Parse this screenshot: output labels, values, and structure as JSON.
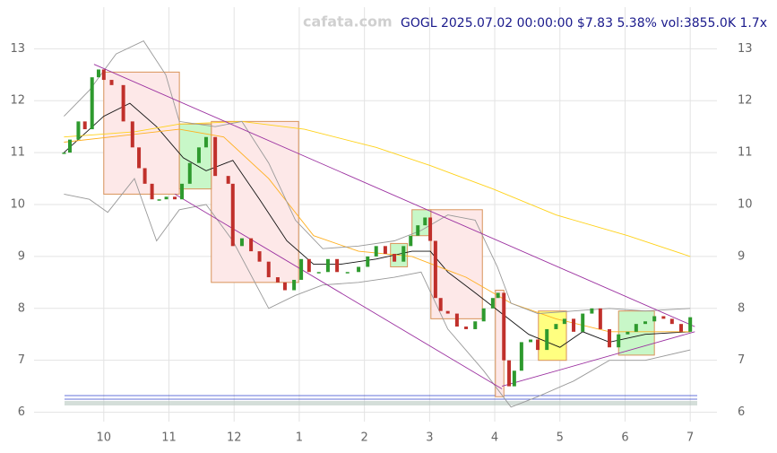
{
  "chart_data": {
    "type": "candlestick",
    "title": "GOGL 2025.07.02 00:00:00 $7.83 5.38% vol:3855.0K 1.7x",
    "watermark": "cafata.com",
    "xlim": [
      -1.07,
      9.41
    ],
    "ylim": [
      5.82,
      13.8
    ],
    "xticks": [
      {
        "value": 0,
        "label": "10"
      },
      {
        "value": 1,
        "label": "11"
      },
      {
        "value": 2,
        "label": "12"
      },
      {
        "value": 3,
        "label": "1"
      },
      {
        "value": 4,
        "label": "2"
      },
      {
        "value": 5,
        "label": "3"
      },
      {
        "value": 6,
        "label": "4"
      },
      {
        "value": 7,
        "label": "5"
      },
      {
        "value": 8,
        "label": "6"
      },
      {
        "value": 9,
        "label": "7"
      }
    ],
    "yticks": [
      6,
      7,
      8,
      9,
      10,
      11,
      12,
      13
    ],
    "grid": true,
    "up_color": "#2e9a2e",
    "down_color": "#c0302b",
    "x": [
      -0.61,
      -0.52,
      -0.39,
      -0.29,
      -0.18,
      -0.08,
      0,
      0.12,
      0.3,
      0.44,
      0.54,
      0.63,
      0.74,
      0.85,
      0.96,
      1.09,
      1.2,
      1.32,
      1.46,
      1.57,
      1.71,
      1.91,
      1.98,
      2.12,
      2.26,
      2.39,
      2.53,
      2.67,
      2.78,
      2.92,
      3.03,
      3.15,
      3.3,
      3.44,
      3.58,
      3.74,
      3.91,
      4.05,
      4.18,
      4.32,
      4.46,
      4.6,
      4.71,
      4.82,
      4.93,
      5.01,
      5.09,
      5.17,
      5.28,
      5.42,
      5.56,
      5.7,
      5.83,
      5.97,
      6.05,
      6.14,
      6.22,
      6.3,
      6.41,
      6.55,
      6.66,
      6.8,
      6.94,
      7.07,
      7.21,
      7.35,
      7.49,
      7.62,
      7.76,
      7.9,
      8.04,
      8.17,
      8.31,
      8.45,
      8.59,
      8.72,
      8.86,
      9.0
    ],
    "values": [
      11.0,
      11.25,
      11.6,
      11.45,
      12.45,
      12.6,
      12.4,
      12.3,
      11.6,
      11.1,
      10.7,
      10.4,
      10.1,
      10.1,
      10.15,
      10.1,
      10.4,
      10.8,
      11.1,
      11.3,
      10.55,
      10.4,
      9.2,
      9.35,
      9.1,
      8.9,
      8.6,
      8.5,
      8.35,
      8.55,
      8.95,
      8.7,
      8.7,
      8.95,
      8.7,
      8.7,
      8.8,
      9.0,
      9.2,
      9.05,
      8.9,
      9.2,
      9.4,
      9.6,
      9.75,
      9.3,
      8.2,
      7.95,
      7.9,
      7.65,
      7.6,
      7.75,
      8.0,
      8.2,
      8.3,
      7.0,
      6.5,
      6.8,
      7.35,
      7.4,
      7.2,
      7.6,
      7.7,
      7.8,
      7.55,
      7.9,
      8.0,
      7.6,
      7.25,
      7.5,
      7.55,
      7.7,
      7.75,
      7.85,
      7.8,
      7.7,
      7.55,
      7.83
    ],
    "series": [
      {
        "color": "#111111",
        "x": [
          -0.61,
          0,
          0.4,
          0.81,
          1.22,
          1.57,
          1.98,
          2.39,
          2.81,
          3.22,
          3.63,
          4.18,
          4.73,
          5.01,
          5.28,
          5.7,
          6.11,
          6.52,
          7.0,
          7.35,
          7.76,
          8.31,
          9.0
        ],
        "values": [
          11.0,
          11.7,
          11.95,
          11.5,
          10.9,
          10.65,
          10.85,
          10.1,
          9.3,
          8.85,
          8.85,
          8.95,
          9.1,
          9.1,
          8.7,
          8.3,
          7.9,
          7.5,
          7.25,
          7.55,
          7.35,
          7.5,
          7.55
        ]
      },
      {
        "color": "#ffb020",
        "x": [
          -0.61,
          1.16,
          1.84,
          2.53,
          3.22,
          3.91,
          4.73,
          5.56,
          6.25,
          6.94,
          7.76,
          9.0
        ],
        "values": [
          11.2,
          11.45,
          11.3,
          10.5,
          9.4,
          9.1,
          9.0,
          8.6,
          8.1,
          7.8,
          7.55,
          7.55
        ]
      },
      {
        "color": "#ffd21a",
        "x": [
          -0.61,
          0.47,
          1.16,
          2.12,
          3.08,
          4.18,
          5.01,
          5.97,
          6.94,
          8.04,
          9.0
        ],
        "values": [
          11.3,
          11.4,
          11.55,
          11.6,
          11.45,
          11.1,
          10.75,
          10.3,
          9.8,
          9.4,
          9.0
        ]
      },
      {
        "color": "#999999",
        "x": [
          -0.61,
          -0.22,
          0.19,
          0.61,
          0.95,
          1.16,
          1.71,
          2.12,
          2.53,
          2.94,
          3.36,
          3.91,
          4.46,
          4.87,
          5.28,
          5.7,
          6.04,
          6.25,
          6.66,
          7.21,
          7.76,
          8.31,
          9.0
        ],
        "values": [
          11.7,
          12.2,
          12.9,
          13.15,
          12.5,
          11.6,
          11.5,
          11.6,
          10.8,
          9.7,
          9.15,
          9.2,
          9.3,
          9.5,
          9.8,
          9.7,
          8.8,
          8.1,
          7.9,
          7.95,
          8.0,
          7.95,
          8.0
        ]
      },
      {
        "color": "#999999",
        "x": [
          -0.61,
          -0.22,
          0.06,
          0.47,
          0.81,
          1.16,
          1.57,
          1.98,
          2.53,
          2.94,
          3.36,
          3.91,
          4.46,
          4.87,
          5.28,
          5.83,
          6.25,
          6.66,
          7.21,
          7.76,
          8.31,
          9.0
        ],
        "values": [
          10.2,
          10.1,
          9.85,
          10.5,
          9.3,
          9.9,
          10.0,
          9.3,
          8.0,
          8.25,
          8.45,
          8.5,
          8.6,
          8.7,
          7.6,
          6.8,
          6.1,
          6.3,
          6.6,
          7.0,
          7.0,
          7.2
        ]
      }
    ],
    "zones": [
      {
        "x": [
          0,
          1.16
        ],
        "range": [
          10.2,
          12.55
        ],
        "color": "#fde8e8"
      },
      {
        "x": [
          1.65,
          2.99
        ],
        "range": [
          8.5,
          11.6
        ],
        "color": "#fde8e8"
      },
      {
        "x": [
          5.02,
          5.81
        ],
        "range": [
          7.8,
          9.9
        ],
        "color": "#fde8e8"
      },
      {
        "x": [
          6.01,
          6.14
        ],
        "range": [
          6.3,
          8.35
        ],
        "color": "#fde8e8"
      },
      {
        "x": [
          1.16,
          1.65
        ],
        "range": [
          10.3,
          11.55
        ],
        "color": "#c8f7c8"
      },
      {
        "x": [
          4.4,
          4.66
        ],
        "range": [
          8.8,
          9.25
        ],
        "color": "#c8f7c8"
      },
      {
        "x": [
          4.73,
          5.02
        ],
        "range": [
          9.4,
          9.9
        ],
        "color": "#c8f7c8"
      },
      {
        "x": [
          7.9,
          8.45
        ],
        "range": [
          7.1,
          7.95
        ],
        "color": "#c8f7c8"
      },
      {
        "x": [
          6.67,
          7.1
        ],
        "range": [
          7.0,
          7.95
        ],
        "color": "#ffff80"
      }
    ],
    "trendlines": [
      {
        "x": [
          -0.15,
          9.07
        ],
        "values": [
          12.7,
          7.65
        ],
        "color": "#9b30a0"
      },
      {
        "x": [
          1.09,
          6.11
        ],
        "values": [
          10.2,
          6.45
        ],
        "color": "#9b30a0"
      },
      {
        "x": [
          6.11,
          9.07
        ],
        "values": [
          6.5,
          7.55
        ],
        "color": "#9b30a0"
      }
    ]
  }
}
